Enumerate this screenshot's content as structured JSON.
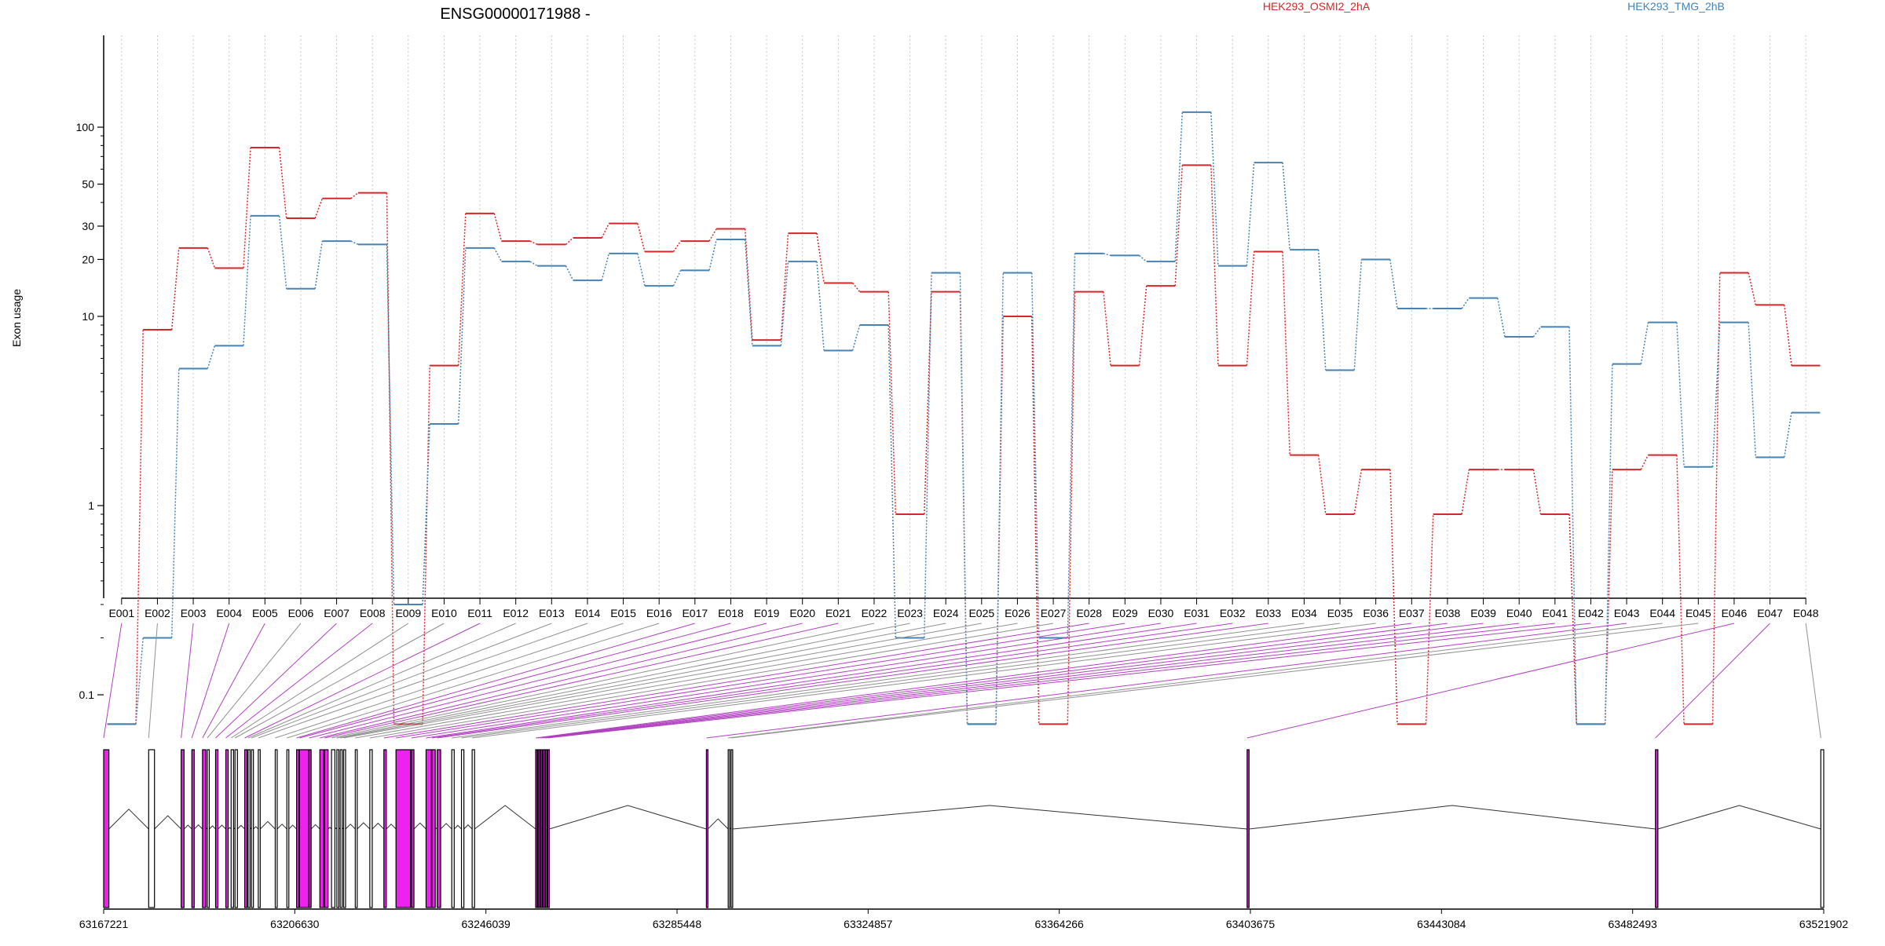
{
  "chart_data": {
    "type": "line",
    "title": "ENSG00000171988 -",
    "ylabel": "Exon usage",
    "xlabel": "",
    "y_scale": "log",
    "y_ticks": [
      {
        "value": 0.1,
        "label": "0.1"
      },
      {
        "value": 1,
        "label": "1"
      },
      {
        "value": 10,
        "label": "10"
      },
      {
        "value": 20,
        "label": "20"
      },
      {
        "value": 30,
        "label": "30"
      },
      {
        "value": 50,
        "label": "50"
      },
      {
        "value": 100,
        "label": "100"
      }
    ],
    "grid": "vertical dotted at each exon",
    "legend_placement": "top",
    "categories": [
      "E001",
      "E002",
      "E003",
      "E004",
      "E005",
      "E006",
      "E007",
      "E008",
      "E009",
      "E010",
      "E011",
      "E012",
      "E013",
      "E014",
      "E015",
      "E016",
      "E017",
      "E018",
      "E019",
      "E020",
      "E021",
      "E022",
      "E023",
      "E024",
      "E025",
      "E026",
      "E027",
      "E028",
      "E029",
      "E030",
      "E031",
      "E032",
      "E033",
      "E034",
      "E035",
      "E036",
      "E037",
      "E038",
      "E039",
      "E040",
      "E041",
      "E042",
      "E043",
      "E044",
      "E045",
      "E046",
      "E047",
      "E048"
    ],
    "series": [
      {
        "name": "HEK293_OSMI2_2hA",
        "color": "#d62728",
        "values": [
          0.07,
          8.5,
          23,
          18,
          78,
          33,
          42,
          45,
          0.07,
          5.5,
          35,
          25,
          24,
          26,
          31,
          22,
          25,
          29,
          7.5,
          27.5,
          15,
          13.5,
          0.9,
          13.5,
          0.07,
          10,
          0.07,
          13.5,
          5.5,
          14.5,
          63,
          5.5,
          22,
          1.85,
          0.9,
          1.55,
          0.07,
          0.9,
          1.55,
          1.55,
          0.9,
          0.07,
          1.55,
          1.85,
          0.07,
          17,
          11.5,
          5.5
        ]
      },
      {
        "name": "HEK293_TMG_2hB",
        "color": "#4682b4",
        "values": [
          0.07,
          0.2,
          5.3,
          7,
          34,
          14,
          25,
          24,
          0.3,
          2.7,
          23,
          19.5,
          18.5,
          15.5,
          21.5,
          14.5,
          17.5,
          25.5,
          7,
          19.5,
          6.6,
          9,
          0.2,
          17,
          0.07,
          17,
          0.2,
          21.5,
          21,
          19.5,
          120,
          18.5,
          65,
          22.5,
          5.2,
          20,
          11,
          11,
          12.5,
          7.8,
          8.8,
          0.07,
          5.6,
          9.3,
          1.6,
          9.3,
          1.8,
          3.1
        ]
      }
    ],
    "genome_axis": {
      "ticks": [
        "63167221",
        "63206630",
        "63246039",
        "63285448",
        "63324857",
        "63364266",
        "63403675",
        "63443084",
        "63482493",
        "63521902"
      ],
      "start": 63167221,
      "end": 63521902
    },
    "exons": [
      {
        "id": "E001",
        "start": 63167221,
        "end": 63168300,
        "highlight": true
      },
      {
        "id": "E002",
        "start": 63176500,
        "end": 63177700,
        "highlight": false
      },
      {
        "id": "E003",
        "start": 63183200,
        "end": 63183800,
        "highlight": true
      },
      {
        "id": "E004",
        "start": 63185400,
        "end": 63185900,
        "highlight": true
      },
      {
        "id": "E005",
        "start": 63187600,
        "end": 63188300,
        "highlight": true
      },
      {
        "id": "E006",
        "start": 63188600,
        "end": 63189000,
        "highlight": false
      },
      {
        "id": "E007",
        "start": 63190300,
        "end": 63190800,
        "highlight": true
      },
      {
        "id": "E008",
        "start": 63192400,
        "end": 63192900,
        "highlight": true
      },
      {
        "id": "E009",
        "start": 63193500,
        "end": 63194000,
        "highlight": false
      },
      {
        "id": "E010",
        "start": 63194300,
        "end": 63194800,
        "highlight": false
      },
      {
        "id": "E011",
        "start": 63196300,
        "end": 63196800,
        "highlight": true
      },
      {
        "id": "E012",
        "start": 63197000,
        "end": 63197400,
        "highlight": false
      },
      {
        "id": "E013",
        "start": 63197700,
        "end": 63198100,
        "highlight": false
      },
      {
        "id": "E014",
        "start": 63199100,
        "end": 63199500,
        "highlight": false
      },
      {
        "id": "E015",
        "start": 63202600,
        "end": 63203000,
        "highlight": false
      },
      {
        "id": "E016",
        "start": 63205000,
        "end": 63205400,
        "highlight": false
      },
      {
        "id": "E017",
        "start": 63207000,
        "end": 63207500,
        "highlight": true
      },
      {
        "id": "E018",
        "start": 63207600,
        "end": 63209500,
        "highlight": true
      },
      {
        "id": "E019",
        "start": 63209600,
        "end": 63210000,
        "highlight": true
      },
      {
        "id": "E020",
        "start": 63211800,
        "end": 63212600,
        "highlight": true
      },
      {
        "id": "E021",
        "start": 63212800,
        "end": 63213500,
        "highlight": true
      },
      {
        "id": "E022",
        "start": 63214200,
        "end": 63214900,
        "highlight": false
      },
      {
        "id": "E023",
        "start": 63215300,
        "end": 63215700,
        "highlight": false
      },
      {
        "id": "E024",
        "start": 63216000,
        "end": 63216400,
        "highlight": false
      },
      {
        "id": "E025",
        "start": 63216700,
        "end": 63217100,
        "highlight": false
      },
      {
        "id": "E026",
        "start": 63219100,
        "end": 63219500,
        "highlight": false
      },
      {
        "id": "E027",
        "start": 63222100,
        "end": 63222600,
        "highlight": false
      },
      {
        "id": "E028",
        "start": 63225000,
        "end": 63225500,
        "highlight": true
      },
      {
        "id": "E029",
        "start": 63227500,
        "end": 63230500,
        "highlight": true
      },
      {
        "id": "E030",
        "start": 63230700,
        "end": 63231200,
        "highlight": true
      },
      {
        "id": "E031",
        "start": 63233700,
        "end": 63234800,
        "highlight": true
      },
      {
        "id": "E032",
        "start": 63234900,
        "end": 63235600,
        "highlight": true
      },
      {
        "id": "E033",
        "start": 63236000,
        "end": 63236700,
        "highlight": true
      },
      {
        "id": "E034",
        "start": 63239000,
        "end": 63239500,
        "highlight": false
      },
      {
        "id": "E035",
        "start": 63241000,
        "end": 63241500,
        "highlight": false
      },
      {
        "id": "E036",
        "start": 63243200,
        "end": 63243700,
        "highlight": false
      },
      {
        "id": "E037",
        "start": 63256300,
        "end": 63256600,
        "highlight": true
      },
      {
        "id": "E038",
        "start": 63256800,
        "end": 63257100,
        "highlight": true
      },
      {
        "id": "E039",
        "start": 63257300,
        "end": 63257600,
        "highlight": true
      },
      {
        "id": "E040",
        "start": 63257800,
        "end": 63258100,
        "highlight": true
      },
      {
        "id": "E041",
        "start": 63258300,
        "end": 63258600,
        "highlight": true
      },
      {
        "id": "E042",
        "start": 63258800,
        "end": 63259100,
        "highlight": true
      },
      {
        "id": "E043",
        "start": 63291500,
        "end": 63291800,
        "highlight": true
      },
      {
        "id": "E044",
        "start": 63296000,
        "end": 63296300,
        "highlight": false
      },
      {
        "id": "E045",
        "start": 63296600,
        "end": 63296900,
        "highlight": false
      },
      {
        "id": "E046",
        "start": 63403000,
        "end": 63403400,
        "highlight": true
      },
      {
        "id": "E047",
        "start": 63487200,
        "end": 63487700,
        "highlight": true
      },
      {
        "id": "E048",
        "start": 63521300,
        "end": 63521902,
        "highlight": false
      }
    ],
    "highlight_color": "#ee22ee"
  }
}
